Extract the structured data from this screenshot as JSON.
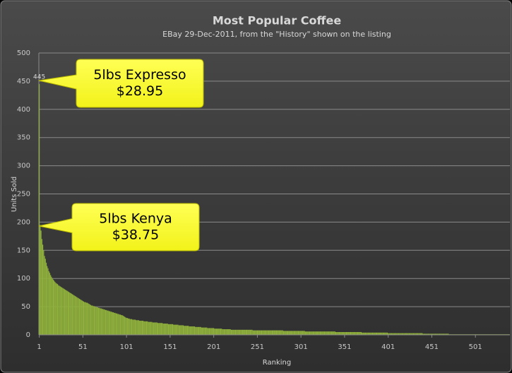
{
  "chart_data": {
    "type": "bar",
    "title": "Most Popular Coffee",
    "subtitle": "EBay 29-Dec-2011, from the \"History\" shown on the listing",
    "x_label": "Ranking",
    "y_label": "Units Sold",
    "color": "#8fb03c",
    "grid": true,
    "xlim": [
      0.5,
      540.5
    ],
    "xticks": [
      1,
      51,
      101,
      151,
      201,
      251,
      301,
      351,
      401,
      451,
      501
    ],
    "ylim": [
      0,
      500
    ],
    "yticks": [
      0,
      50,
      100,
      150,
      200,
      250,
      300,
      350,
      400,
      450,
      500
    ],
    "annotations": [
      {
        "lines": [
          "5lbs Expresso",
          "$28.95"
        ]
      },
      {
        "lines": [
          "5lbs Kenya",
          "$38.75"
        ]
      }
    ],
    "values": [
      445,
      195,
      185,
      170,
      160,
      150,
      140,
      135,
      128,
      122,
      118,
      113,
      110,
      106,
      103,
      100,
      98,
      96,
      94,
      92,
      91,
      90,
      88,
      87,
      86,
      85,
      84,
      83,
      82,
      81,
      80,
      79,
      78,
      77,
      76,
      75,
      74,
      73,
      72,
      71,
      70,
      69,
      68,
      67,
      66,
      65,
      64,
      63,
      62,
      61,
      60,
      59,
      58,
      58,
      57,
      57,
      56,
      55,
      54,
      53,
      52,
      52,
      51,
      51,
      50,
      50,
      49,
      49,
      48,
      48,
      47,
      47,
      46,
      46,
      45,
      45,
      44,
      44,
      43,
      43,
      42,
      42,
      41,
      41,
      40,
      40,
      39,
      39,
      38,
      38,
      37,
      37,
      36,
      36,
      35,
      35,
      34,
      33,
      32,
      31,
      30,
      30,
      29,
      29,
      28,
      28,
      28,
      27,
      27,
      27,
      27,
      26,
      26,
      26,
      26,
      25,
      25,
      25,
      25,
      25,
      24,
      24,
      24,
      24,
      24,
      23,
      23,
      23,
      23,
      23,
      22,
      22,
      22,
      22,
      22,
      22,
      21,
      21,
      21,
      21,
      21,
      21,
      20,
      20,
      20,
      20,
      20,
      20,
      19,
      19,
      19,
      19,
      19,
      19,
      18,
      18,
      18,
      18,
      18,
      18,
      17,
      17,
      17,
      17,
      17,
      17,
      16,
      16,
      16,
      16,
      16,
      16,
      15,
      15,
      15,
      15,
      15,
      15,
      15,
      14,
      14,
      14,
      14,
      14,
      14,
      14,
      13,
      13,
      13,
      13,
      13,
      13,
      13,
      12,
      12,
      12,
      12,
      12,
      12,
      12,
      12,
      11,
      11,
      11,
      11,
      11,
      11,
      11,
      11,
      11,
      10,
      10,
      10,
      10,
      10,
      10,
      10,
      10,
      10,
      10,
      9,
      9,
      9,
      9,
      9,
      9,
      9,
      9,
      9,
      9,
      9,
      9,
      9,
      9,
      9,
      9,
      9,
      9,
      9,
      9,
      9,
      9,
      9,
      9,
      9,
      8,
      8,
      8,
      8,
      8,
      8,
      8,
      8,
      8,
      8,
      8,
      8,
      8,
      8,
      8,
      8,
      8,
      8,
      8,
      8,
      8,
      8,
      8,
      8,
      8,
      8,
      8,
      8,
      8,
      8,
      8,
      8,
      8,
      8,
      8,
      7,
      7,
      7,
      7,
      7,
      7,
      7,
      7,
      7,
      7,
      7,
      7,
      7,
      7,
      7,
      7,
      7,
      7,
      7,
      7,
      7,
      7,
      7,
      7,
      7,
      6,
      6,
      6,
      6,
      6,
      6,
      6,
      6,
      6,
      6,
      6,
      6,
      6,
      6,
      6,
      6,
      6,
      6,
      6,
      6,
      6,
      6,
      6,
      6,
      6,
      6,
      6,
      6,
      6,
      6,
      6,
      6,
      6,
      6,
      6,
      5,
      5,
      5,
      5,
      5,
      5,
      5,
      5,
      5,
      5,
      5,
      5,
      5,
      5,
      5,
      5,
      5,
      5,
      5,
      5,
      5,
      5,
      5,
      5,
      5,
      5,
      5,
      5,
      5,
      5,
      4,
      4,
      4,
      4,
      4,
      4,
      4,
      4,
      4,
      4,
      4,
      4,
      4,
      4,
      4,
      4,
      4,
      4,
      4,
      4,
      4,
      4,
      4,
      4,
      4,
      4,
      4,
      4,
      4,
      4,
      3,
      3,
      3,
      3,
      3,
      3,
      3,
      3,
      3,
      3,
      3,
      3,
      3,
      3,
      3,
      3,
      3,
      3,
      3,
      3,
      3,
      3,
      3,
      3,
      3,
      3,
      3,
      3,
      3,
      3,
      3,
      3,
      3,
      3,
      3,
      3,
      3,
      3,
      3,
      3,
      2,
      2,
      2,
      2,
      2,
      2,
      2,
      2,
      2,
      2,
      2,
      2,
      2,
      2,
      2,
      2,
      2,
      2,
      2,
      2,
      2,
      2,
      2,
      2,
      2,
      2,
      2,
      2,
      2,
      2,
      1,
      1,
      1,
      1,
      1,
      1,
      1,
      1,
      1,
      1,
      1,
      1,
      1,
      1,
      1,
      1,
      1,
      1,
      1,
      1,
      1,
      1,
      1,
      1,
      1,
      1,
      1,
      1,
      1,
      1,
      1,
      1,
      1,
      1,
      1,
      1,
      1,
      1,
      1,
      1,
      1,
      1,
      1,
      1,
      1,
      1,
      1,
      1,
      1,
      1,
      1,
      1,
      1,
      1,
      1,
      1,
      1,
      1,
      1,
      1,
      1,
      1,
      1,
      1,
      1,
      1,
      1,
      1,
      1,
      1
    ]
  }
}
